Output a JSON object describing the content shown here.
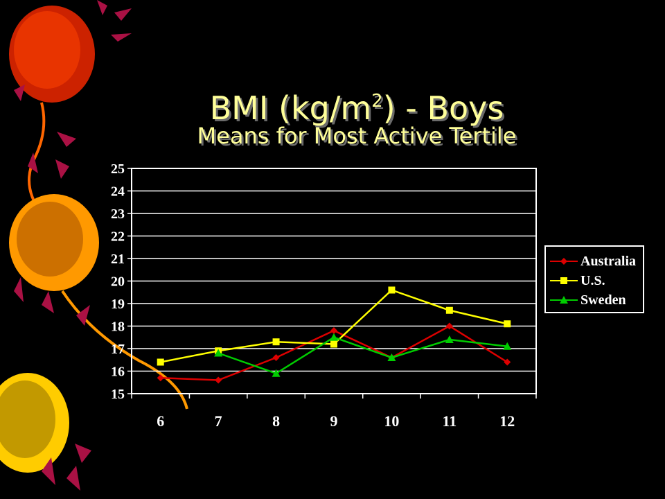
{
  "slide": {
    "title_main": "BMI (kg/m",
    "title_sup": "2",
    "title_tail": ") -  Boys",
    "subtitle": "Means for Most Active Tertile"
  },
  "chart_data": {
    "type": "line",
    "categories": [
      "6",
      "7",
      "8",
      "9",
      "10",
      "11",
      "12"
    ],
    "ylim": [
      15,
      25
    ],
    "yticks": [
      "15",
      "16",
      "17",
      "18",
      "19",
      "20",
      "21",
      "22",
      "23",
      "24",
      "25"
    ],
    "grid": true,
    "legend_position": "right",
    "series": [
      {
        "name": "Australia",
        "color": "#dd0000",
        "marker": "diamond",
        "values": [
          15.7,
          15.6,
          16.6,
          17.8,
          16.6,
          18.0,
          16.4
        ]
      },
      {
        "name": "U.S.",
        "color": "#ffff00",
        "marker": "square",
        "values": [
          16.4,
          16.9,
          17.3,
          17.2,
          19.6,
          18.7,
          18.1
        ]
      },
      {
        "name": "Sweden",
        "color": "#00cc00",
        "marker": "triangle",
        "values": [
          null,
          16.8,
          15.9,
          17.5,
          16.6,
          17.4,
          17.1
        ]
      }
    ]
  },
  "decor": {
    "balloon_colors": [
      "#ff4400",
      "#ff9900",
      "#ffcc00"
    ],
    "accent_color": "#aa1144"
  }
}
